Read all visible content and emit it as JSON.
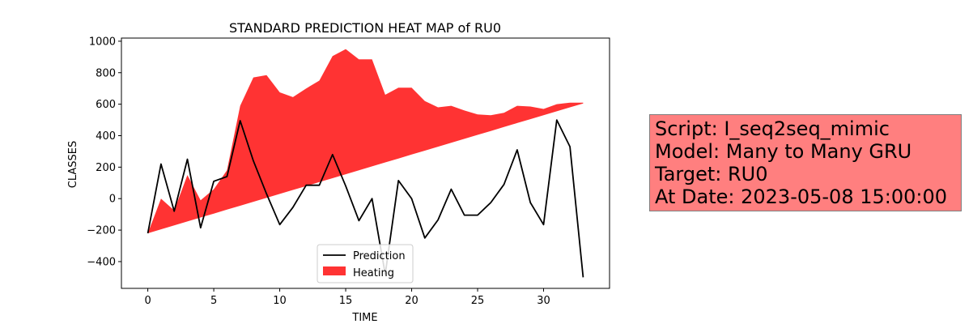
{
  "chart_data": {
    "type": "line",
    "title": "STANDARD PREDICTION HEAT MAP of RU0",
    "xlabel": "TIME",
    "ylabel": "CLASSES",
    "xlim": [
      -2,
      35
    ],
    "ylim": [
      -570,
      1020
    ],
    "xticks": [
      0,
      5,
      10,
      15,
      20,
      25,
      30
    ],
    "yticks": [
      -400,
      -200,
      0,
      200,
      400,
      600,
      800,
      1000
    ],
    "x": [
      0,
      1,
      2,
      3,
      4,
      5,
      6,
      7,
      8,
      9,
      10,
      11,
      12,
      13,
      14,
      15,
      16,
      17,
      18,
      19,
      20,
      21,
      22,
      23,
      24,
      25,
      26,
      27,
      28,
      29,
      30,
      31,
      32,
      33
    ],
    "series": [
      {
        "name": "Prediction",
        "kind": "line",
        "color": "#000000",
        "values": [
          -220,
          220,
          -80,
          250,
          -185,
          110,
          140,
          495,
          240,
          30,
          -165,
          -55,
          85,
          85,
          280,
          80,
          -140,
          0,
          -480,
          115,
          0,
          -250,
          -135,
          60,
          -105,
          -105,
          -25,
          90,
          310,
          -25,
          -165,
          500,
          330,
          -500
        ]
      },
      {
        "name": "Heating",
        "kind": "area",
        "color": "#ff3333",
        "upper": [
          -220,
          0,
          -75,
          150,
          -10,
          60,
          180,
          590,
          770,
          785,
          675,
          645,
          700,
          750,
          905,
          950,
          885,
          885,
          660,
          705,
          705,
          620,
          580,
          590,
          560,
          535,
          530,
          545,
          590,
          585,
          570,
          600,
          610,
          610
        ],
        "lower": [
          -220,
          -195,
          -170,
          -145,
          -120,
          -95,
          -70,
          -45,
          -20,
          5,
          30,
          55,
          80,
          105,
          130,
          155,
          180,
          205,
          230,
          255,
          280,
          305,
          330,
          355,
          380,
          405,
          430,
          455,
          480,
          505,
          530,
          555,
          580,
          605
        ]
      }
    ],
    "legend": {
      "placement": "bottom-center"
    }
  },
  "info": {
    "script": "Script: I_seq2seq_mimic",
    "model": "Model: Many to Many GRU",
    "target": "Target: RU0",
    "date": "At Date: 2023-05-08 15:00:00",
    "background": "#ff7f7f"
  }
}
